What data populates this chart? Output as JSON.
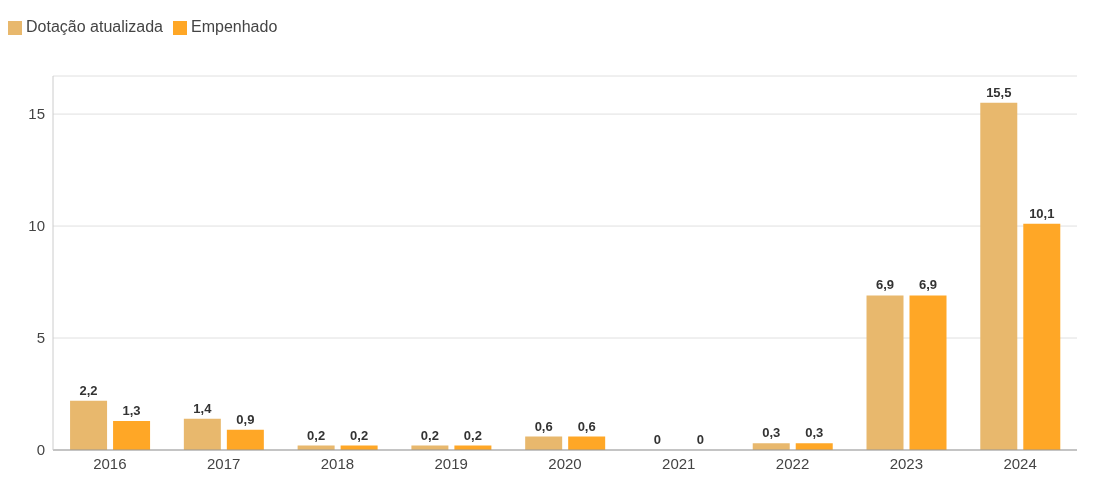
{
  "chart_data": {
    "type": "bar",
    "categories": [
      "2016",
      "2017",
      "2018",
      "2019",
      "2020",
      "2021",
      "2022",
      "2023",
      "2024"
    ],
    "series": [
      {
        "name": "Dotação atualizada",
        "color": "#e8b86d",
        "values": [
          2.2,
          1.4,
          0.2,
          0.2,
          0.6,
          0,
          0.3,
          6.9,
          15.5
        ],
        "value_labels": [
          "2,2",
          "1,4",
          "0,2",
          "0,2",
          "0,6",
          "0",
          "0,3",
          "6,9",
          "15,5"
        ]
      },
      {
        "name": "Empenhado",
        "color": "#ffa726",
        "values": [
          1.3,
          0.9,
          0.2,
          0.2,
          0.6,
          0,
          0.3,
          6.9,
          10.1
        ],
        "value_labels": [
          "1,3",
          "0,9",
          "0,2",
          "0,2",
          "0,6",
          "0",
          "0,3",
          "6,9",
          "10,1"
        ]
      }
    ],
    "ylim": [
      0,
      16.7
    ],
    "yticks": [
      0,
      5,
      10,
      15
    ],
    "grid": "y",
    "legend": "top left"
  }
}
